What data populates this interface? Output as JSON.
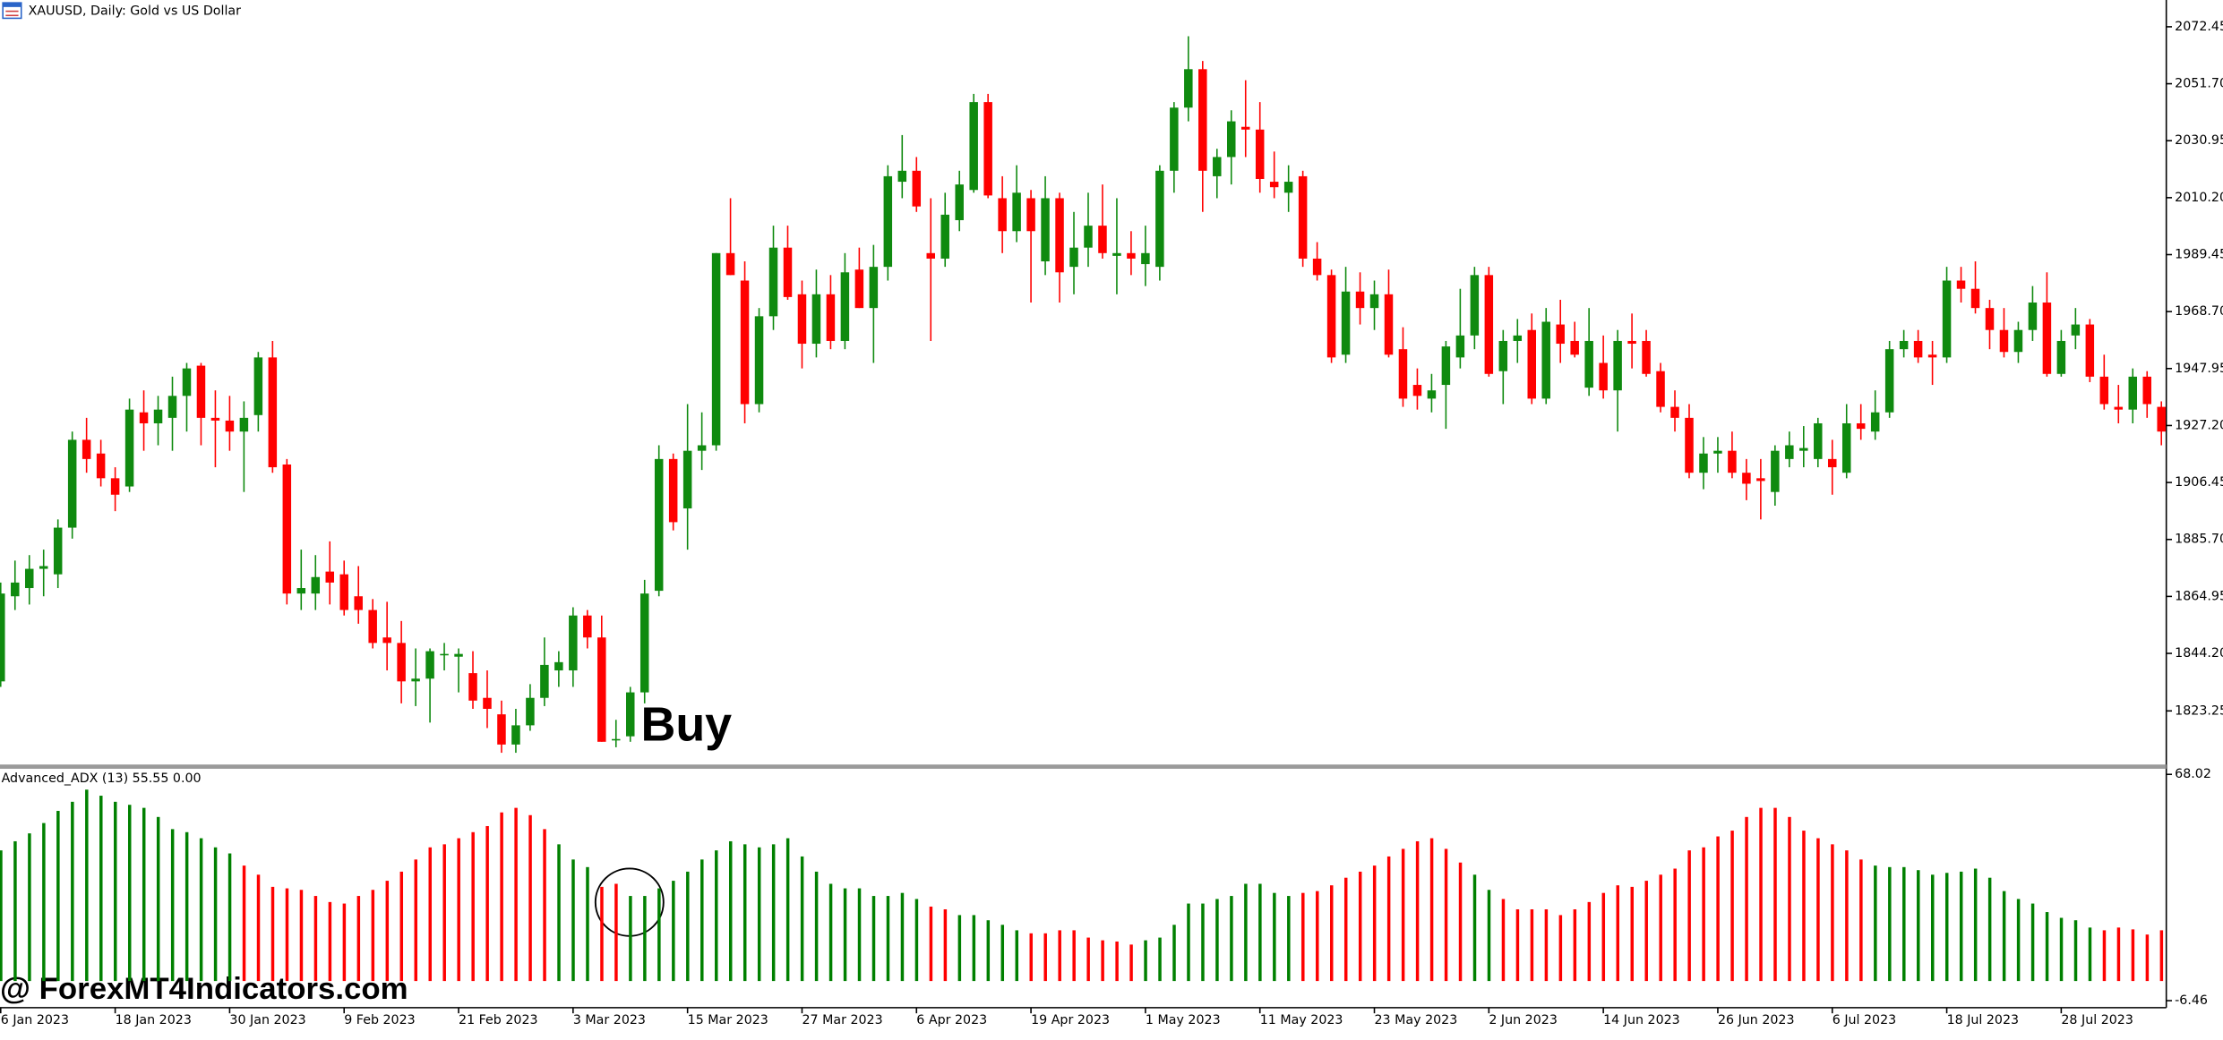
{
  "window_title": "XAUUSD, Daily:  Gold vs US Dollar",
  "watermark": "@ ForexMT4Indicators.com",
  "chart_data": [
    {
      "type": "candlestick",
      "annotation": "Buy",
      "up_color": "#0f8a0f",
      "down_color": "#ff0000",
      "ylim": [
        1803.2,
        2082.2
      ],
      "yticks": [
        2072.45,
        {
          "value": 2051.7,
          "label": "2051.70"
        },
        2030.95,
        {
          "value": 2010.2,
          "label": "2010.20"
        },
        1989.45,
        {
          "value": 1968.7,
          "label": "1968.70"
        },
        1947.95,
        {
          "value": 1927.2,
          "label": "1927.20"
        },
        1906.45,
        {
          "value": 1885.7,
          "label": "1885.70"
        },
        1864.95,
        {
          "value": 1844.2,
          "label": "1844.20"
        },
        1823.25
      ],
      "open": [
        1834,
        1865,
        1868,
        1875,
        1873,
        1890,
        1922,
        1917,
        1908,
        1905,
        1932,
        1928,
        1930,
        1938,
        1949,
        1930,
        1929,
        1925,
        1931,
        1952,
        1913,
        1866,
        1866,
        1874,
        1873,
        1865,
        1860,
        1850,
        1848,
        1834,
        1835,
        1844,
        1843,
        1837,
        1828,
        1822,
        1811,
        1818,
        1828,
        1838,
        1838,
        1858,
        1850,
        1813,
        1814,
        1830,
        1867,
        1915,
        1897,
        1918,
        1920,
        1990,
        1980,
        1935,
        1967,
        1992,
        1975,
        1957,
        1975,
        1958,
        1984,
        1970,
        1985,
        2016,
        2020,
        1990,
        1988,
        2002,
        2013,
        2045,
        2010,
        1998,
        2010,
        1987,
        2010,
        1985,
        1992,
        2000,
        1989,
        1990,
        1986,
        1985,
        2020,
        2043,
        2057,
        2018,
        2025,
        2036,
        2035,
        2016,
        2012,
        2018,
        1988,
        1982,
        1953,
        1976,
        1970,
        1975,
        1955,
        1942,
        1937,
        1942,
        1952,
        1960,
        1982,
        1947,
        1958,
        1962,
        1937,
        1964,
        1958,
        1941,
        1950,
        1940,
        1958,
        1958,
        1947,
        1934,
        1930,
        1910,
        1917,
        1918,
        1910,
        1908,
        1903,
        1915,
        1918,
        1915,
        1915,
        1910,
        1928,
        1925,
        1932,
        1955,
        1958,
        1953,
        1952,
        1980,
        1977,
        1970,
        1962,
        1954,
        1962,
        1972,
        1946,
        1960,
        1964,
        1945,
        1934,
        1933,
        1945,
        1934
      ],
      "high": [
        1870,
        1878,
        1880,
        1882,
        1893,
        1925,
        1930,
        1922,
        1912,
        1937,
        1940,
        1938,
        1945,
        1950,
        1950,
        1940,
        1938,
        1936,
        1954,
        1958,
        1915,
        1882,
        1880,
        1885,
        1878,
        1876,
        1864,
        1863,
        1856,
        1846,
        1846,
        1848,
        1846,
        1845,
        1838,
        1827,
        1824,
        1833,
        1850,
        1845,
        1861,
        1860,
        1858,
        1820,
        1832,
        1871,
        1920,
        1917,
        1935,
        1932,
        1990,
        2010,
        1987,
        1970,
        2000,
        2000,
        1980,
        1984,
        1982,
        1990,
        1992,
        1993,
        2022,
        2033,
        2025,
        2010,
        2012,
        2020,
        2048,
        2048,
        2018,
        2022,
        2013,
        2018,
        2012,
        2005,
        2012,
        2015,
        2010,
        1998,
        2000,
        2022,
        2045,
        2069,
        2060,
        2028,
        2042,
        2053,
        2045,
        2027,
        2022,
        2020,
        1994,
        1984,
        1985,
        1983,
        1980,
        1984,
        1963,
        1948,
        1946,
        1958,
        1977,
        1985,
        1985,
        1962,
        1966,
        1968,
        1970,
        1973,
        1965,
        1970,
        1960,
        1962,
        1968,
        1962,
        1950,
        1940,
        1935,
        1923,
        1923,
        1925,
        1915,
        1915,
        1920,
        1925,
        1927,
        1930,
        1922,
        1935,
        1935,
        1940,
        1958,
        1962,
        1962,
        1958,
        1985,
        1985,
        1987,
        1973,
        1970,
        1965,
        1978,
        1983,
        1962,
        1970,
        1966,
        1953,
        1942,
        1948,
        1947,
        1936
      ],
      "low": [
        1832,
        1860,
        1862,
        1865,
        1868,
        1886,
        1910,
        1905,
        1896,
        1903,
        1918,
        1920,
        1918,
        1925,
        1920,
        1912,
        1918,
        1903,
        1925,
        1910,
        1862,
        1860,
        1860,
        1862,
        1858,
        1855,
        1846,
        1838,
        1826,
        1825,
        1819,
        1838,
        1830,
        1824,
        1817,
        1808,
        1808,
        1816,
        1825,
        1832,
        1832,
        1846,
        1812,
        1810,
        1812,
        1826,
        1865,
        1889,
        1882,
        1911,
        1918,
        1982,
        1928,
        1932,
        1962,
        1973,
        1948,
        1952,
        1955,
        1955,
        1970,
        1950,
        1980,
        2010,
        2005,
        1958,
        1985,
        1998,
        2012,
        2010,
        1990,
        1994,
        1972,
        1982,
        1972,
        1975,
        1985,
        1988,
        1975,
        1982,
        1978,
        1980,
        2012,
        2038,
        2005,
        2010,
        2015,
        2025,
        2012,
        2010,
        2005,
        1985,
        1980,
        1950,
        1950,
        1964,
        1962,
        1952,
        1934,
        1933,
        1932,
        1926,
        1948,
        1955,
        1945,
        1935,
        1950,
        1935,
        1935,
        1950,
        1952,
        1938,
        1937,
        1925,
        1948,
        1945,
        1932,
        1925,
        1908,
        1904,
        1910,
        1908,
        1900,
        1893,
        1898,
        1912,
        1912,
        1912,
        1902,
        1908,
        1922,
        1922,
        1930,
        1952,
        1950,
        1942,
        1950,
        1972,
        1968,
        1955,
        1952,
        1950,
        1958,
        1945,
        1945,
        1955,
        1943,
        1933,
        1928,
        1928,
        1930,
        1920
      ],
      "close": [
        1866,
        1870,
        1875,
        1876,
        1890,
        1922,
        1915,
        1908,
        1902,
        1933,
        1928,
        1933,
        1938,
        1948,
        1930,
        1929,
        1925,
        1930,
        1952,
        1912,
        1866,
        1868,
        1872,
        1870,
        1860,
        1860,
        1848,
        1848,
        1834,
        1835,
        1845,
        1844,
        1844,
        1827,
        1824,
        1811,
        1818,
        1828,
        1840,
        1841,
        1858,
        1850,
        1812,
        1813,
        1830,
        1866,
        1915,
        1892,
        1918,
        1920,
        1990,
        1982,
        1935,
        1967,
        1992,
        1974,
        1957,
        1975,
        1958,
        1983,
        1970,
        1985,
        2018,
        2020,
        2007,
        1988,
        2004,
        2015,
        2045,
        2011,
        1998,
        2012,
        1998,
        2010,
        1983,
        1992,
        2000,
        1990,
        1990,
        1988,
        1990,
        2020,
        2043,
        2057,
        2020,
        2025,
        2038,
        2035,
        2017,
        2014,
        2016,
        1988,
        1982,
        1952,
        1976,
        1970,
        1975,
        1953,
        1937,
        1938,
        1940,
        1956,
        1960,
        1982,
        1946,
        1958,
        1960,
        1937,
        1965,
        1957,
        1953,
        1958,
        1940,
        1958,
        1957,
        1946,
        1934,
        1930,
        1910,
        1917,
        1918,
        1910,
        1906,
        1907,
        1918,
        1920,
        1919,
        1928,
        1912,
        1928,
        1926,
        1932,
        1955,
        1958,
        1952,
        1952,
        1980,
        1977,
        1970,
        1962,
        1954,
        1962,
        1972,
        1946,
        1958,
        1964,
        1945,
        1935,
        1933,
        1945,
        1935,
        1925
      ]
    },
    {
      "type": "bar",
      "title": "Advanced_ADX (13) 55.55 0.00",
      "ylim": [
        -6.46,
        68.02
      ],
      "yticks": [
        68.02,
        -6.46
      ],
      "categories": [
        "6 Jan 2023",
        null,
        null,
        null,
        null,
        null,
        null,
        null,
        "18 Jan 2023",
        null,
        null,
        null,
        null,
        null,
        null,
        null,
        "30 Jan 2023",
        null,
        null,
        null,
        null,
        null,
        null,
        null,
        "9 Feb 2023",
        null,
        null,
        null,
        null,
        null,
        null,
        null,
        "21 Feb 2023",
        null,
        null,
        null,
        null,
        null,
        null,
        null,
        "3 Mar 2023",
        null,
        null,
        null,
        null,
        null,
        null,
        null,
        "15 Mar 2023",
        null,
        null,
        null,
        null,
        null,
        null,
        null,
        "27 Mar 2023",
        null,
        null,
        null,
        null,
        null,
        null,
        null,
        "6 Apr 2023",
        null,
        null,
        null,
        null,
        null,
        null,
        null,
        "19 Apr 2023",
        null,
        null,
        null,
        null,
        null,
        null,
        null,
        "1 May 2023",
        null,
        null,
        null,
        null,
        null,
        null,
        null,
        "11 May 2023",
        null,
        null,
        null,
        null,
        null,
        null,
        null,
        "23 May 2023",
        null,
        null,
        null,
        null,
        null,
        null,
        null,
        "2 Jun 2023",
        null,
        null,
        null,
        null,
        null,
        null,
        null,
        "14 Jun 2023",
        null,
        null,
        null,
        null,
        null,
        null,
        null,
        "26 Jun 2023",
        null,
        null,
        null,
        null,
        null,
        null,
        null,
        "6 Jul 2023",
        null,
        null,
        null,
        null,
        null,
        null,
        null,
        "18 Jul 2023",
        null,
        null,
        null,
        null,
        null,
        null,
        null,
        "28 Jul 2023",
        null,
        null,
        null,
        null,
        null,
        null,
        null
      ],
      "values": [
        43,
        46,
        48.6,
        52,
        56,
        59,
        63,
        61,
        59,
        58,
        57,
        54,
        50,
        49,
        47,
        44,
        42,
        38,
        35,
        31,
        30.5,
        30,
        28,
        26,
        25.5,
        28,
        30,
        33,
        36,
        40,
        44,
        45,
        47,
        49,
        51,
        55.5,
        57,
        54.6,
        50,
        45,
        40,
        37.5,
        31,
        32,
        28,
        28,
        30.5,
        33,
        36,
        40,
        43,
        46,
        45,
        44,
        45,
        47,
        41,
        36,
        32,
        30.5,
        30.5,
        28,
        28,
        29,
        27,
        24.5,
        23.6,
        21.7,
        21.7,
        20,
        18.5,
        16.7,
        15.7,
        15.7,
        16.7,
        16.7,
        14.3,
        13.4,
        13,
        12,
        13.4,
        14.3,
        18.5,
        25.5,
        25.5,
        27,
        28,
        32,
        32,
        29,
        28,
        29,
        29.6,
        31.5,
        34,
        36,
        38,
        41,
        43.5,
        46,
        47,
        43.5,
        39,
        35,
        30,
        27,
        23.6,
        23.6,
        23.6,
        21.7,
        23.6,
        26,
        29,
        31.5,
        31,
        33,
        35,
        37,
        43,
        44,
        47.6,
        49.5,
        54,
        57,
        57,
        54,
        49.5,
        47,
        45,
        43,
        40,
        38,
        37.5,
        37.5,
        36.5,
        35,
        35.6,
        36,
        37,
        34,
        29.6,
        27,
        25.5,
        22.7,
        20.8,
        20,
        17.6,
        16.7,
        17.6,
        17,
        15.3,
        16.7
      ],
      "colors": [
        "green",
        "green",
        "green",
        "green",
        "green",
        "green",
        "green",
        "green",
        "green",
        "green",
        "green",
        "green",
        "green",
        "green",
        "green",
        "green",
        "green",
        "red",
        "red",
        "red",
        "red",
        "red",
        "red",
        "red",
        "red",
        "red",
        "red",
        "red",
        "red",
        "red",
        "red",
        "red",
        "red",
        "red",
        "red",
        "red",
        "red",
        "red",
        "red",
        "green",
        "green",
        "green",
        "red",
        "red",
        "green",
        "green",
        "green",
        "green",
        "green",
        "green",
        "green",
        "green",
        "green",
        "green",
        "green",
        "green",
        "green",
        "green",
        "green",
        "green",
        "green",
        "green",
        "green",
        "green",
        "green",
        "red",
        "red",
        "green",
        "green",
        "green",
        "green",
        "green",
        "red",
        "red",
        "red",
        "red",
        "red",
        "red",
        "red",
        "red",
        "green",
        "green",
        "green",
        "green",
        "green",
        "green",
        "green",
        "green",
        "green",
        "green",
        "green",
        "red",
        "red",
        "red",
        "red",
        "red",
        "red",
        "red",
        "red",
        "red",
        "red",
        "red",
        "red",
        "green",
        "green",
        "red",
        "red",
        "red",
        "red",
        "red",
        "red",
        "red",
        "red",
        "red",
        "red",
        "red",
        "red",
        "red",
        "red",
        "red",
        "red",
        "red",
        "red",
        "red",
        "red",
        "red",
        "red",
        "red",
        "red",
        "red",
        "red",
        "green",
        "green",
        "green",
        "green",
        "green",
        "green",
        "green",
        "green",
        "green",
        "green",
        "green",
        "green",
        "green",
        "green",
        "green",
        "green",
        "red",
        "red",
        "red",
        "red",
        "red"
      ]
    }
  ]
}
